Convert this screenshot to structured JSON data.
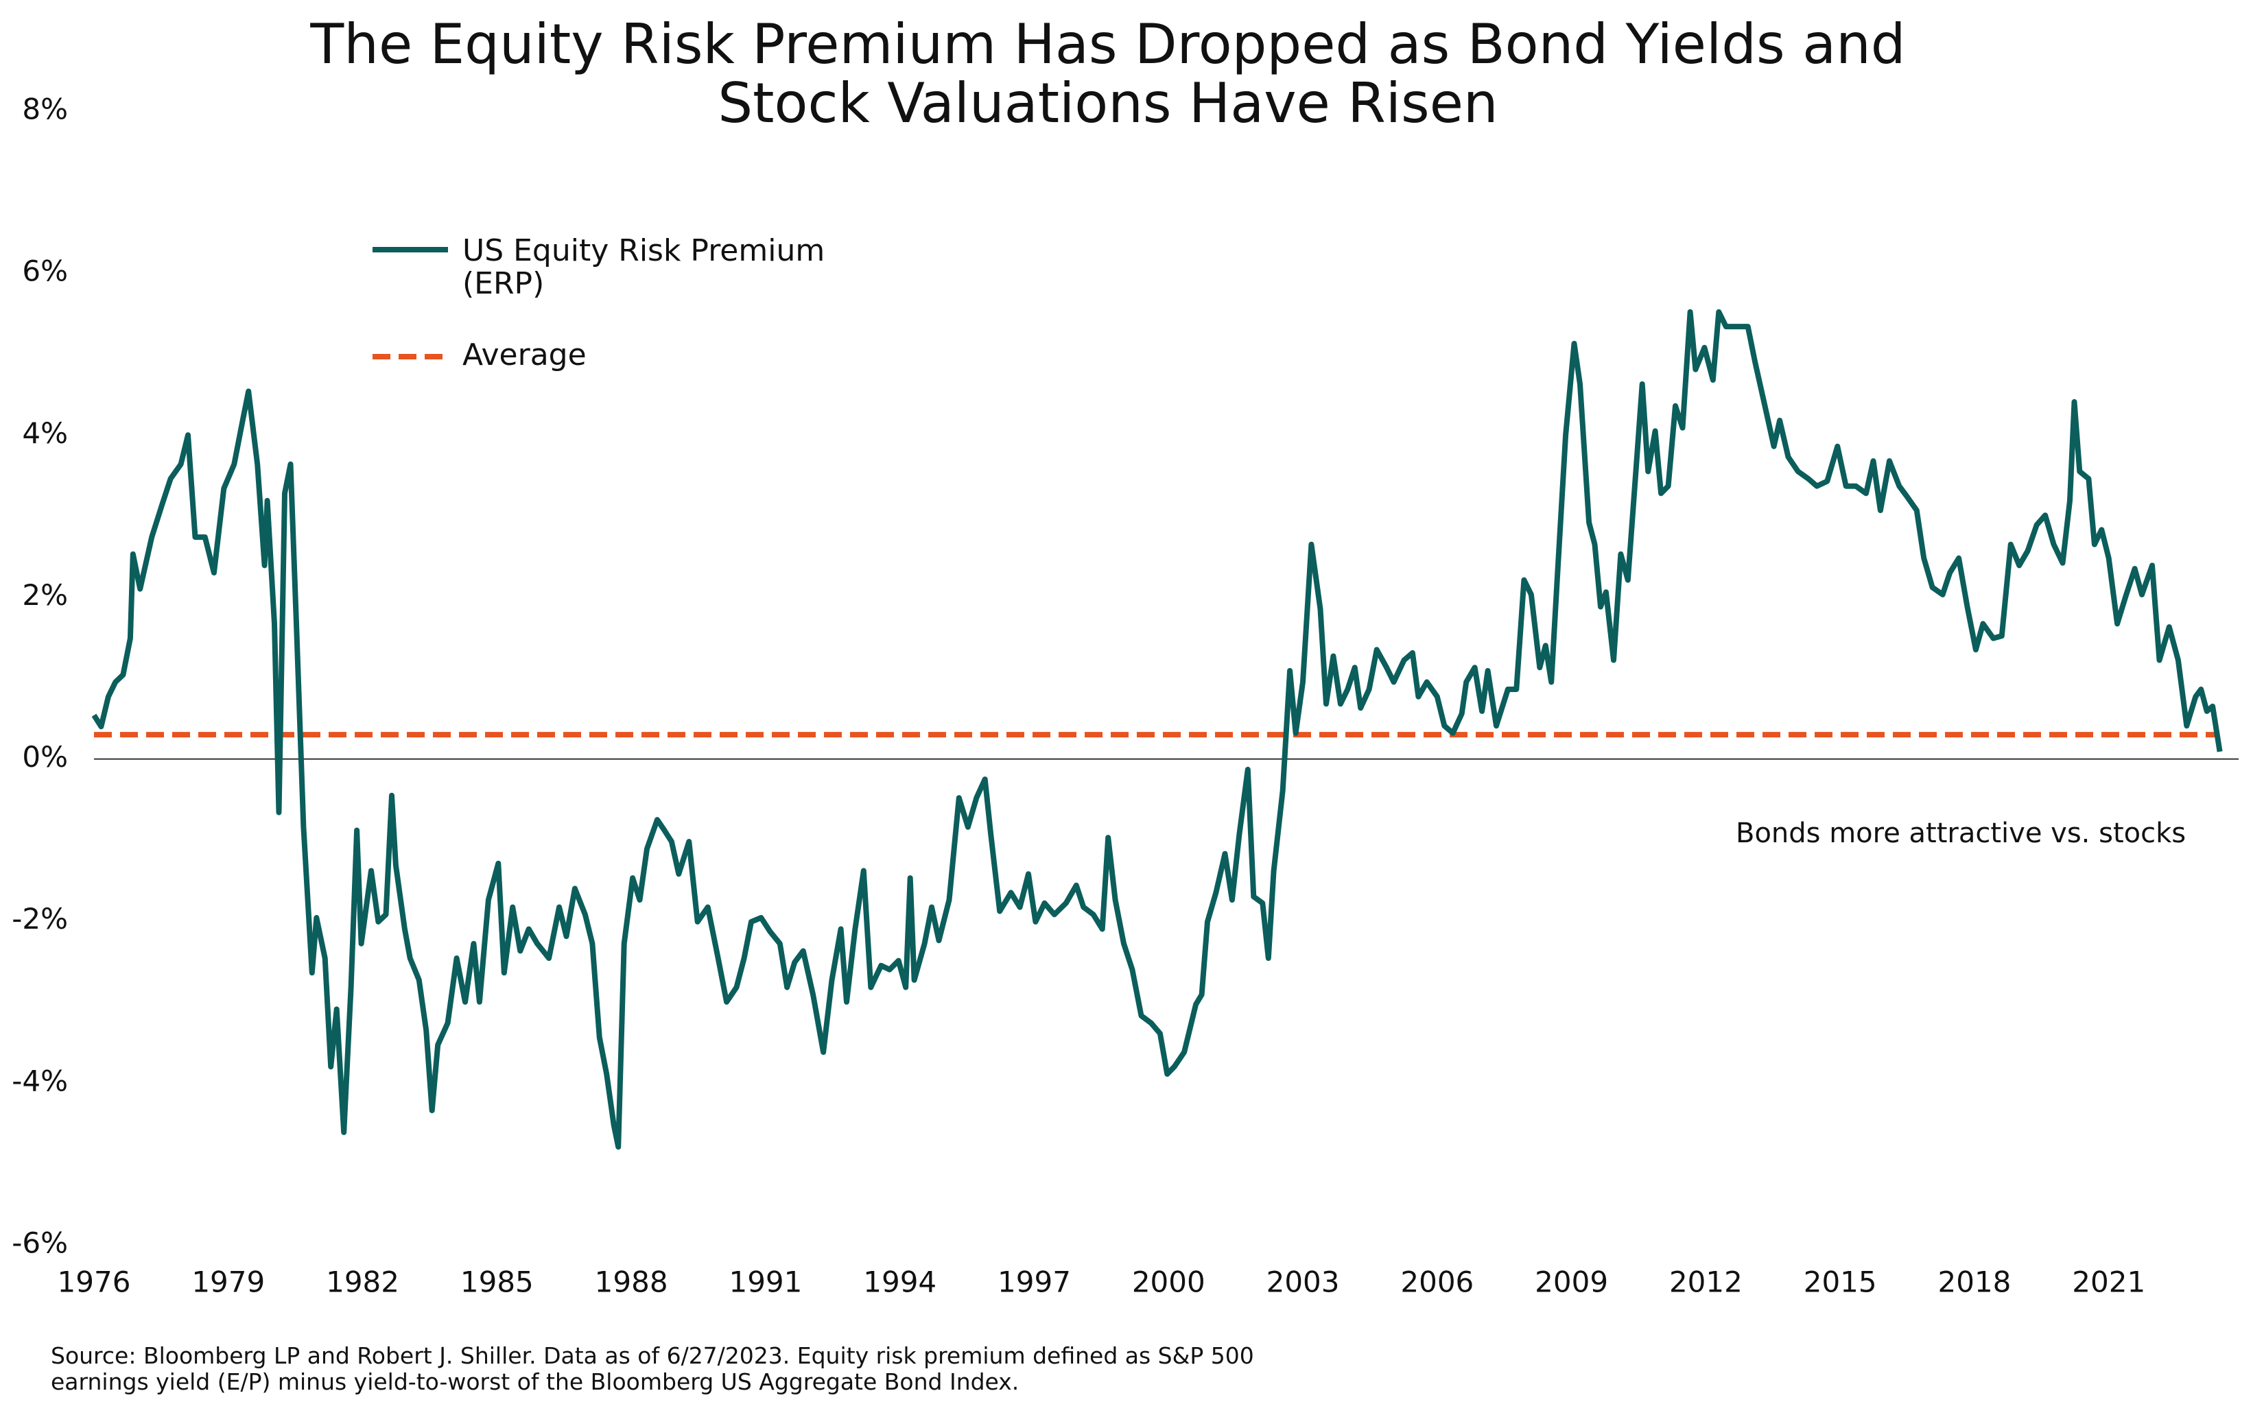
{
  "chart_data": {
    "type": "line",
    "title": "The Equity Risk Premium Has Dropped as Bond Yields and\nStock  Valuations Have Risen",
    "annotation": "Bonds more attractive vs. stocks",
    "source": "Source: Bloomberg LP and Robert J. Shiller. Data as of 6/27/2023. Equity risk premium defined as S&P 500\nearnings yield (E/P) minus yield-to-worst of the Bloomberg US Aggregate Bond Index.",
    "xlim": [
      1976,
      2023.9
    ],
    "xticks": [
      1976,
      1979,
      1982,
      1985,
      1988,
      1991,
      1994,
      1997,
      2000,
      2003,
      2006,
      2009,
      2012,
      2015,
      2018,
      2021
    ],
    "ylim": [
      -6,
      8
    ],
    "yticks": [
      {
        "value": -6,
        "label": "-6%"
      },
      {
        "value": -4,
        "label": "-4%"
      },
      {
        "value": -2,
        "label": "-2%"
      },
      {
        "value": 0,
        "label": "0%"
      },
      {
        "value": 2,
        "label": "2%"
      },
      {
        "value": 4,
        "label": "4%"
      },
      {
        "value": 6,
        "label": "6%"
      },
      {
        "value": 8,
        "label": "8%"
      }
    ],
    "grid": false,
    "average": {
      "name": "Average",
      "value": 0.3,
      "color": "#e8531f"
    },
    "x": [
      1976.0,
      1976.16,
      1976.32,
      1976.48,
      1976.65,
      1976.81,
      1976.87,
      1977.03,
      1977.29,
      1977.52,
      1977.71,
      1977.94,
      1978.1,
      1978.26,
      1978.48,
      1978.68,
      1978.9,
      1979.13,
      1979.32,
      1979.45,
      1979.65,
      1979.81,
      1979.87,
      1980.03,
      1980.13,
      1980.26,
      1980.39,
      1980.52,
      1980.68,
      1980.87,
      1980.97,
      1981.16,
      1981.29,
      1981.42,
      1981.58,
      1981.74,
      1981.87,
      1981.97,
      1982.19,
      1982.35,
      1982.52,
      1982.65,
      1982.74,
      1982.94,
      1983.06,
      1983.26,
      1983.42,
      1983.55,
      1983.68,
      1983.9,
      1984.1,
      1984.29,
      1984.48,
      1984.61,
      1984.81,
      1985.03,
      1985.16,
      1985.35,
      1985.52,
      1985.71,
      1985.9,
      1986.16,
      1986.39,
      1986.55,
      1986.74,
      1986.97,
      1987.13,
      1987.29,
      1987.45,
      1987.61,
      1987.71,
      1987.84,
      1988.03,
      1988.19,
      1988.35,
      1988.58,
      1988.74,
      1988.9,
      1989.06,
      1989.29,
      1989.48,
      1989.71,
      1989.94,
      1990.13,
      1990.35,
      1990.52,
      1990.68,
      1990.9,
      1991.1,
      1991.32,
      1991.48,
      1991.65,
      1991.84,
      1992.06,
      1992.29,
      1992.48,
      1992.68,
      1992.81,
      1993.0,
      1993.19,
      1993.35,
      1993.58,
      1993.77,
      1993.97,
      1994.13,
      1994.23,
      1994.32,
      1994.55,
      1994.71,
      1994.87,
      1995.1,
      1995.32,
      1995.52,
      1995.71,
      1995.9,
      1996.03,
      1996.23,
      1996.48,
      1996.68,
      1996.87,
      1997.03,
      1997.23,
      1997.45,
      1997.71,
      1997.94,
      1998.1,
      1998.32,
      1998.52,
      1998.65,
      1998.81,
      1999.0,
      1999.19,
      1999.39,
      1999.61,
      1999.81,
      1999.97,
      2000.13,
      2000.35,
      2000.61,
      2000.74,
      2000.87,
      2001.06,
      2001.26,
      2001.42,
      2001.58,
      2001.77,
      2001.9,
      2002.1,
      2002.23,
      2002.35,
      2002.55,
      2002.71,
      2002.84,
      2003.0,
      2003.19,
      2003.39,
      2003.52,
      2003.68,
      2003.84,
      2004.0,
      2004.16,
      2004.29,
      2004.48,
      2004.65,
      2004.87,
      2005.03,
      2005.26,
      2005.45,
      2005.58,
      2005.77,
      2006.0,
      2006.16,
      2006.35,
      2006.55,
      2006.65,
      2006.84,
      2007.0,
      2007.13,
      2007.32,
      2007.58,
      2007.77,
      2007.94,
      2008.1,
      2008.29,
      2008.42,
      2008.55,
      2008.68,
      2008.87,
      2009.06,
      2009.19,
      2009.39,
      2009.52,
      2009.65,
      2009.77,
      2009.94,
      2010.1,
      2010.26,
      2010.45,
      2010.58,
      2010.71,
      2010.87,
      2011.0,
      2011.16,
      2011.32,
      2011.48,
      2011.65,
      2011.77,
      2011.97,
      2012.16,
      2012.29,
      2012.45,
      2012.68,
      2012.94,
      2013.1,
      2013.32,
      2013.52,
      2013.65,
      2013.84,
      2014.06,
      2014.29,
      2014.48,
      2014.71,
      2014.94,
      2015.13,
      2015.35,
      2015.58,
      2015.74,
      2015.9,
      2016.1,
      2016.32,
      2016.48,
      2016.71,
      2016.87,
      2017.06,
      2017.29,
      2017.45,
      2017.65,
      2017.84,
      2018.03,
      2018.19,
      2018.42,
      2018.61,
      2018.81,
      2019.0,
      2019.19,
      2019.39,
      2019.58,
      2019.77,
      2019.97,
      2020.13,
      2020.23,
      2020.35,
      2020.55,
      2020.68,
      2020.84,
      2021.0,
      2021.19,
      2021.39,
      2021.58,
      2021.74,
      2021.97,
      2022.13,
      2022.35,
      2022.55,
      2022.74,
      2022.94,
      2023.06,
      2023.19,
      2023.32,
      2023.48
    ],
    "series": [
      {
        "name": "US Equity Risk Premium\n(ERP)",
        "color": "#0b5e5b",
        "values": [
          0.54,
          0.4,
          0.77,
          0.95,
          1.04,
          1.49,
          2.53,
          2.1,
          2.74,
          3.14,
          3.46,
          3.64,
          4.0,
          2.74,
          2.74,
          2.3,
          3.34,
          3.64,
          4.18,
          4.54,
          3.64,
          2.39,
          3.19,
          1.67,
          -0.66,
          3.28,
          3.64,
          1.67,
          -0.84,
          -2.64,
          -1.96,
          -2.46,
          -3.8,
          -3.09,
          -4.61,
          -2.82,
          -0.88,
          -2.28,
          -1.38,
          -2.01,
          -1.92,
          -0.45,
          -1.31,
          -2.1,
          -2.46,
          -2.73,
          -3.35,
          -4.34,
          -3.53,
          -3.26,
          -2.46,
          -3.0,
          -2.28,
          -3.0,
          -1.74,
          -1.29,
          -2.64,
          -1.83,
          -2.37,
          -2.1,
          -2.28,
          -2.46,
          -1.83,
          -2.19,
          -1.6,
          -1.92,
          -2.28,
          -3.44,
          -3.89,
          -4.52,
          -4.79,
          -2.28,
          -1.47,
          -1.74,
          -1.11,
          -0.75,
          -0.88,
          -1.02,
          -1.42,
          -1.02,
          -2.01,
          -1.83,
          -2.46,
          -3.0,
          -2.82,
          -2.46,
          -2.01,
          -1.96,
          -2.13,
          -2.28,
          -2.82,
          -2.51,
          -2.37,
          -2.91,
          -3.62,
          -2.73,
          -2.1,
          -3.0,
          -2.1,
          -1.38,
          -2.82,
          -2.55,
          -2.6,
          -2.49,
          -2.82,
          -1.47,
          -2.73,
          -2.28,
          -1.83,
          -2.24,
          -1.74,
          -0.48,
          -0.84,
          -0.48,
          -0.25,
          -0.93,
          -1.88,
          -1.65,
          -1.83,
          -1.42,
          -2.01,
          -1.78,
          -1.92,
          -1.78,
          -1.56,
          -1.83,
          -1.92,
          -2.1,
          -0.97,
          -1.74,
          -2.28,
          -2.6,
          -3.17,
          -3.26,
          -3.39,
          -3.89,
          -3.8,
          -3.62,
          -3.03,
          -2.91,
          -2.01,
          -1.65,
          -1.17,
          -1.74,
          -0.93,
          -0.13,
          -1.7,
          -1.78,
          -2.46,
          -1.38,
          -0.39,
          1.09,
          0.32,
          0.95,
          2.65,
          1.85,
          0.68,
          1.27,
          0.68,
          0.86,
          1.13,
          0.63,
          0.86,
          1.35,
          1.13,
          0.95,
          1.22,
          1.31,
          0.77,
          0.95,
          0.77,
          0.41,
          0.32,
          0.56,
          0.95,
          1.13,
          0.59,
          1.09,
          0.41,
          0.86,
          0.86,
          2.21,
          2.03,
          1.13,
          1.4,
          0.95,
          2.21,
          4.0,
          5.13,
          4.63,
          2.92,
          2.65,
          1.88,
          2.06,
          1.22,
          2.53,
          2.21,
          3.64,
          4.63,
          3.55,
          4.05,
          3.28,
          3.37,
          4.36,
          4.09,
          5.52,
          4.81,
          5.08,
          4.68,
          5.52,
          5.34,
          5.34,
          5.34,
          4.9,
          4.36,
          3.86,
          4.18,
          3.73,
          3.55,
          3.46,
          3.37,
          3.43,
          3.86,
          3.37,
          3.37,
          3.28,
          3.68,
          3.07,
          3.68,
          3.37,
          3.25,
          3.07,
          2.48,
          2.12,
          2.03,
          2.3,
          2.48,
          1.88,
          1.35,
          1.67,
          1.49,
          1.52,
          2.65,
          2.39,
          2.57,
          2.89,
          3.01,
          2.65,
          2.42,
          3.19,
          4.41,
          3.55,
          3.46,
          2.65,
          2.83,
          2.48,
          1.67,
          2.03,
          2.35,
          2.03,
          2.39,
          1.22,
          1.63,
          1.22,
          0.41,
          0.77,
          0.86,
          0.59,
          0.65,
          0.09
        ]
      }
    ]
  }
}
